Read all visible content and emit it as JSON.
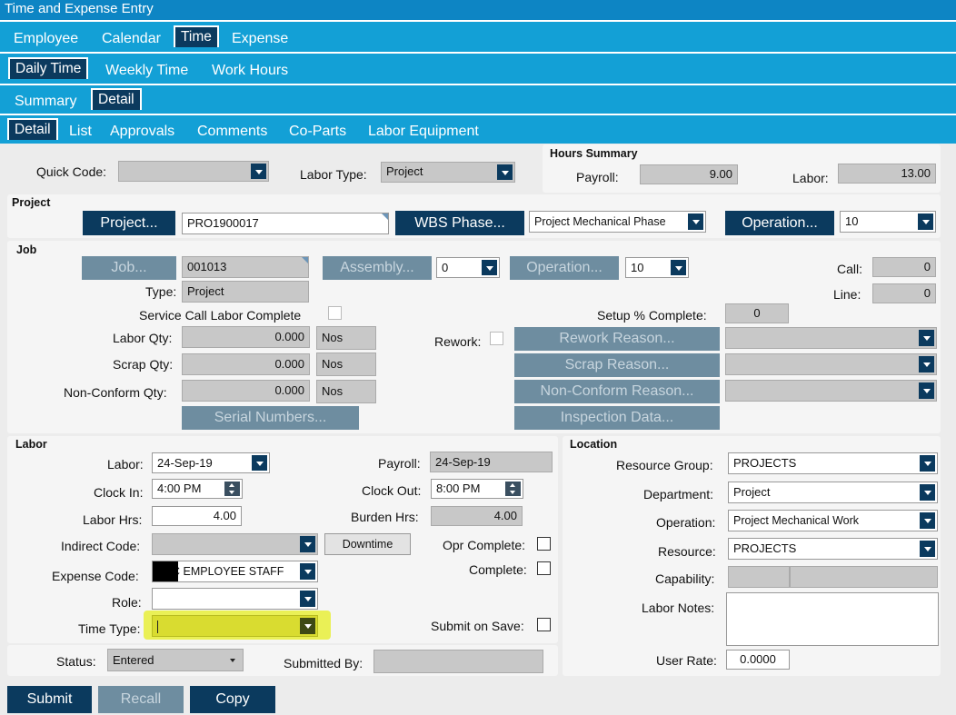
{
  "window": {
    "title": "Time and Expense Entry"
  },
  "tabs": {
    "top": [
      "Employee",
      "Calendar",
      "Time",
      "Expense"
    ],
    "time_tabs": [
      "Daily Time",
      "Weekly Time",
      "Work Hours"
    ],
    "daily_tabs": [
      "Summary",
      "Detail"
    ],
    "detail_tabs": [
      "Detail",
      "List",
      "Approvals",
      "Comments",
      "Co-Parts",
      "Labor Equipment"
    ]
  },
  "header": {
    "quick_code_label": "Quick Code:",
    "quick_code_value": "",
    "labor_type_label": "Labor Type:",
    "labor_type_value": "Project",
    "hours_summary_title": "Hours Summary",
    "payroll_label": "Payroll:",
    "payroll_value": "9.00",
    "labor_label": "Labor:",
    "labor_value": "13.00"
  },
  "project": {
    "section_title": "Project",
    "project_button": "Project...",
    "project_value": "PRO1900017",
    "wbs_button": "WBS Phase...",
    "wbs_value": "Project Mechanical Phase",
    "operation_button": "Operation...",
    "operation_value": "10"
  },
  "job": {
    "section_title": "Job",
    "job_button": "Job...",
    "job_value": "001013",
    "assembly_button": "Assembly...",
    "assembly_value": "0",
    "operation_button": "Operation...",
    "operation_value": "10",
    "call_label": "Call:",
    "call_value": "0",
    "type_label": "Type:",
    "type_value": "Project",
    "line_label": "Line:",
    "line_value": "0",
    "service_call_label": "Service Call Labor Complete",
    "setup_label": "Setup % Complete:",
    "setup_value": "0",
    "labor_qty_label": "Labor Qty:",
    "labor_qty_value": "0.000",
    "labor_qty_unit": "Nos",
    "scrap_qty_label": "Scrap Qty:",
    "scrap_qty_value": "0.000",
    "scrap_qty_unit": "Nos",
    "nonconform_qty_label": "Non-Conform Qty:",
    "nonconform_qty_value": "0.000",
    "nonconform_qty_unit": "Nos",
    "rework_label": "Rework:",
    "rework_reason_button": "Rework Reason...",
    "scrap_reason_button": "Scrap Reason...",
    "nonconform_reason_button": "Non-Conform Reason...",
    "serial_numbers_button": "Serial Numbers...",
    "inspection_data_button": "Inspection Data..."
  },
  "labor": {
    "section_title": "Labor",
    "labor_date_label": "Labor:",
    "labor_date_value": "24-Sep-19",
    "payroll_label": "Payroll:",
    "payroll_value": "24-Sep-19",
    "clock_in_label": "Clock In:",
    "clock_in_value": "4:00 PM",
    "clock_out_label": "Clock Out:",
    "clock_out_value": "8:00 PM",
    "labor_hrs_label": "Labor Hrs:",
    "labor_hrs_value": "4.00",
    "burden_hrs_label": "Burden Hrs:",
    "burden_hrs_value": "4.00",
    "indirect_code_label": "Indirect Code:",
    "indirect_code_value": "",
    "downtime_button": "Downtime",
    "opr_complete_label": "Opr Complete:",
    "expense_code_label": "Expense Code:",
    "expense_code_value": "C EMPLOYEE STAFF",
    "complete_label": "Complete:",
    "role_label": "Role:",
    "role_value": "",
    "time_type_label": "Time Type:",
    "time_type_value": "",
    "submit_on_save_label": "Submit on Save:"
  },
  "location": {
    "section_title": "Location",
    "resource_group_label": "Resource Group:",
    "resource_group_value": "PROJECTS",
    "department_label": "Department:",
    "department_value": "Project",
    "operation_label": "Operation:",
    "operation_value": "Project Mechanical Work",
    "resource_label": "Resource:",
    "resource_value": "PROJECTS",
    "capability_label": "Capability:",
    "labor_notes_label": "Labor Notes:",
    "labor_notes_value": "",
    "user_rate_label": "User Rate:",
    "user_rate_value": "0.0000"
  },
  "status": {
    "status_label": "Status:",
    "status_value": "Entered",
    "submitted_by_label": "Submitted By:",
    "submitted_by_value": ""
  },
  "actions": {
    "submit": "Submit",
    "recall": "Recall",
    "copy": "Copy"
  },
  "colors": {
    "title_bar": "#0d85c4",
    "tab_bar": "#13a0d6",
    "active_tab": "#0b3a5e",
    "button": "#0b3a5e",
    "disabled_button": "#6e8da0",
    "highlight": "#e7ee3a"
  }
}
